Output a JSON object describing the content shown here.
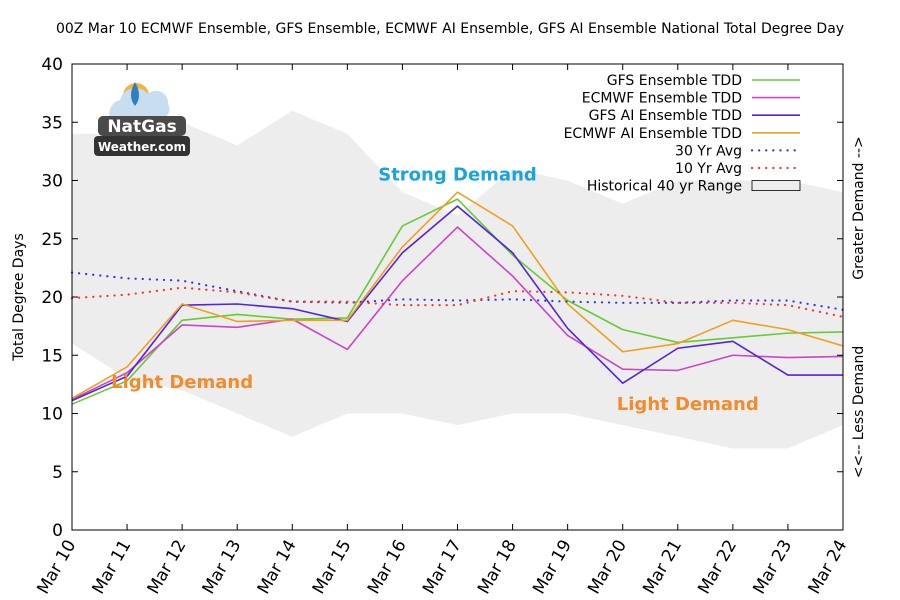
{
  "chart_data": {
    "type": "line",
    "title": "00Z Mar 10 ECMWF Ensemble, GFS Ensemble, ECMWF AI Ensemble, GFS AI Ensemble National Total Degree Day",
    "xlabel": "",
    "ylabel": "Total Degree Days",
    "ylim": [
      0,
      40
    ],
    "yticks": [
      0,
      5,
      10,
      15,
      20,
      25,
      30,
      35,
      40
    ],
    "grid": false,
    "legend_position": "top-right",
    "categories": [
      "Mar 10",
      "Mar 11",
      "Mar 12",
      "Mar 13",
      "Mar 14",
      "Mar 15",
      "Mar 16",
      "Mar 17",
      "Mar 18",
      "Mar 19",
      "Mar 20",
      "Mar 21",
      "Mar 22",
      "Mar 23",
      "Mar 24"
    ],
    "series": [
      {
        "name": "GFS Ensemble TDD",
        "color": "#66cc33",
        "style": "solid",
        "values": [
          10.8,
          12.8,
          18.0,
          18.5,
          18.1,
          18.2,
          26.1,
          28.4,
          23.6,
          19.7,
          17.2,
          16.1,
          16.5,
          16.9,
          17.0
        ]
      },
      {
        "name": "ECMWF Ensemble TDD",
        "color": "#cc44cc",
        "style": "solid",
        "values": [
          11.2,
          13.5,
          17.6,
          17.4,
          18.1,
          15.5,
          21.4,
          26.0,
          21.8,
          16.7,
          13.8,
          13.7,
          15.0,
          14.8,
          14.9
        ]
      },
      {
        "name": "GFS AI Ensemble TDD",
        "color": "#5522dd",
        "style": "solid",
        "values": [
          11.1,
          13.2,
          19.3,
          19.4,
          19.0,
          17.9,
          23.8,
          27.8,
          23.8,
          17.3,
          12.6,
          15.6,
          16.2,
          13.3,
          13.3
        ]
      },
      {
        "name": "ECMWF AI Ensemble TDD",
        "color": "#f0a020",
        "style": "solid",
        "values": [
          11.3,
          14.0,
          19.4,
          17.9,
          18.0,
          18.0,
          24.3,
          29.0,
          26.1,
          19.4,
          15.3,
          16.0,
          18.0,
          17.2,
          15.8
        ]
      },
      {
        "name": "30 Yr Avg",
        "color": "#3333dd",
        "style": "dotted",
        "values": [
          22.1,
          21.6,
          21.4,
          20.5,
          19.6,
          19.5,
          19.8,
          19.7,
          19.8,
          19.6,
          19.5,
          19.5,
          19.7,
          19.7,
          18.9
        ]
      },
      {
        "name": "10 Yr Avg",
        "color": "#ee3333",
        "style": "dotted",
        "values": [
          19.9,
          20.2,
          20.8,
          20.4,
          19.6,
          19.6,
          19.3,
          19.3,
          20.5,
          20.4,
          20.1,
          19.5,
          19.5,
          19.3,
          18.3
        ]
      }
    ],
    "range": {
      "name": "Historical 40 yr Range",
      "color": "#ededed",
      "upper": [
        34,
        34,
        35,
        33,
        36,
        34,
        29,
        27,
        31,
        30,
        28,
        30,
        30,
        30,
        29
      ],
      "lower": [
        16,
        13,
        12,
        10,
        8,
        10,
        10,
        9,
        10,
        10,
        9,
        8,
        7,
        7,
        9
      ]
    },
    "right_axis_labels": {
      "top": "Greater Demand -->",
      "bottom": "<<-- Less Demand"
    },
    "annotations": [
      {
        "text": "Light Demand",
        "x": "Mar 12",
        "y": 12.7,
        "color": "#f58a2b"
      },
      {
        "text": "Strong Demand",
        "x": "Mar 17",
        "y": 30.5,
        "color": "#1ba3df"
      },
      {
        "text": "Light Demand",
        "x": "Mar 21",
        "y": 10.8,
        "color": "#f58a2b"
      }
    ]
  },
  "logo": {
    "line1": "NatGas",
    "line2": "Weather.com"
  }
}
